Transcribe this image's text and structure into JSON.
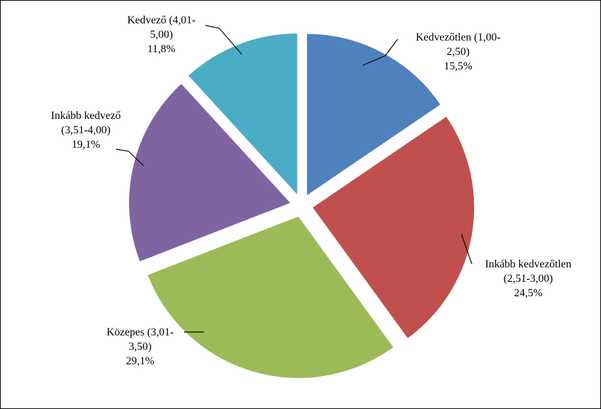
{
  "chart_data": {
    "type": "pie",
    "exploded": true,
    "start_angle_deg": 0,
    "direction": "clockwise",
    "legend": "none",
    "slices": [
      {
        "category": "Kedvezőtlen (1,00-2,50)",
        "value": 15.5,
        "value_label": "15,5%",
        "color": "#4F81BD",
        "label_lines": [
          "Kedvezőtlen (1,00-",
          "2,50)",
          "15,5%"
        ]
      },
      {
        "category": "Inkább kedvezőtlen (2,51-3,00)",
        "value": 24.5,
        "value_label": "24,5%",
        "color": "#C0504D",
        "label_lines": [
          "Inkább kedvezőtlen",
          "(2,51-3,00)",
          "24,5%"
        ]
      },
      {
        "category": "Közepes (3,01-3,50)",
        "value": 29.1,
        "value_label": "29,1%",
        "color": "#9BBB59",
        "label_lines": [
          "Közepes (3,01-",
          "3,50)",
          "29,1%"
        ]
      },
      {
        "category": "Inkább kedvező (3,51-4,00)",
        "value": 19.1,
        "value_label": "19,1%",
        "color": "#8064A2",
        "label_lines": [
          "Inkább kedvező",
          "(3,51-4,00)",
          "19,1%"
        ]
      },
      {
        "category": "Kedvező (4,01-5,00)",
        "value": 11.8,
        "value_label": "11,8%",
        "color": "#4BACC6",
        "label_lines": [
          "Kedvező (4,01-",
          "5,00)",
          "11,8%"
        ]
      }
    ]
  }
}
